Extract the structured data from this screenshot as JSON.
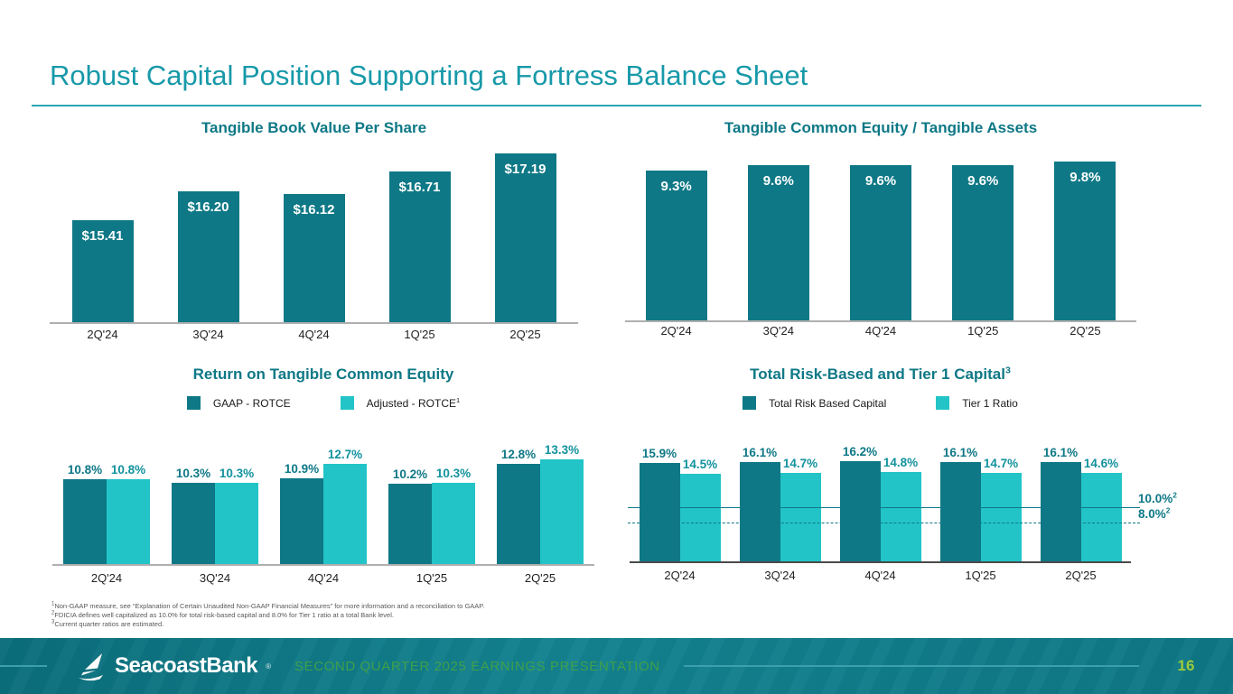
{
  "slide": {
    "title": "Robust Capital Position Supporting a Fortress Balance Sheet",
    "logo_text": "SeacoastBank",
    "logo_mark": "®",
    "footer_text": "SECOND QUARTER 2025 EARNINGS PRESENTATION",
    "page_number": "16"
  },
  "colors": {
    "title_teal": "#1799A9",
    "chart_title_teal": "#0E7886",
    "bar_dark": "#0E7886",
    "bar_light": "#22C4C7",
    "footer_bg": "#0E7684",
    "footer_title_green": "#3FA04A",
    "page_number_green": "#9BCB3C"
  },
  "footnotes": [
    {
      "sup": "1",
      "text": "Non-GAAP measure, see “Explanation of Certain Unaudited Non-GAAP Financial Measures” for more information and a reconciliation to GAAP."
    },
    {
      "sup": "2",
      "text": "FDICIA defines well capitalized as 10.0% for total risk-based capital and 8.0% for Tier 1 ratio at a total Bank level."
    },
    {
      "sup": "3",
      "text": "Current quarter ratios are estimated."
    }
  ],
  "chart_data": [
    {
      "id": "tangible-book-value-per-share",
      "type": "bar",
      "title": "Tangible Book Value Per Share",
      "categories": [
        "2Q'24",
        "3Q'24",
        "4Q'24",
        "1Q'25",
        "2Q'25"
      ],
      "values": [
        15.41,
        16.2,
        16.12,
        16.71,
        17.19
      ],
      "labels": [
        "$15.41",
        "$16.20",
        "$16.12",
        "$16.71",
        "$17.19"
      ],
      "label_position": "inside-top",
      "grid": false,
      "ylim": [
        12.7,
        17.8
      ]
    },
    {
      "id": "tangible-common-equity-to-tangible-assets",
      "type": "bar",
      "title": "Tangible Common Equity / Tangible Assets",
      "categories": [
        "2Q'24",
        "3Q'24",
        "4Q'24",
        "1Q'25",
        "2Q'25"
      ],
      "values": [
        9.3,
        9.6,
        9.6,
        9.6,
        9.8
      ],
      "labels": [
        "9.3%",
        "9.6%",
        "9.6%",
        "9.6%",
        "9.8%"
      ],
      "label_position": "inside-top",
      "grid": false,
      "ylim": [
        1.5,
        10.3
      ]
    },
    {
      "id": "return-on-tangible-common-equity",
      "type": "bar",
      "title": "Return on Tangible Common Equity",
      "categories": [
        "2Q'24",
        "3Q'24",
        "4Q'24",
        "1Q'25",
        "2Q'25"
      ],
      "series": [
        {
          "name": "GAAP - ROTCE",
          "name_sup": "",
          "values": [
            10.8,
            10.3,
            10.9,
            10.2,
            12.8
          ],
          "labels": [
            "10.8%",
            "10.3%",
            "10.9%",
            "10.2%",
            "12.8%"
          ]
        },
        {
          "name": "Adjusted - ROTCE",
          "name_sup": "1",
          "values": [
            10.8,
            10.3,
            12.7,
            10.3,
            13.3
          ],
          "labels": [
            "10.8%",
            "10.3%",
            "12.7%",
            "10.3%",
            "13.3%"
          ]
        }
      ],
      "label_position": "above",
      "legend_position": "top",
      "grid": false,
      "ylim": [
        0,
        15.5
      ]
    },
    {
      "id": "total-risk-based-and-tier-1-capital",
      "type": "bar",
      "title": "Total Risk-Based and Tier 1 Capital",
      "title_sup": "3",
      "categories": [
        "2Q'24",
        "3Q'24",
        "4Q'24",
        "1Q'25",
        "2Q'25"
      ],
      "series": [
        {
          "name": "Total Risk Based Capital",
          "name_sup": "",
          "values": [
            15.9,
            16.1,
            16.2,
            16.1,
            16.1
          ],
          "labels": [
            "15.9%",
            "16.1%",
            "16.2%",
            "16.1%",
            "16.1%"
          ]
        },
        {
          "name": "Tier 1 Ratio",
          "name_sup": "",
          "values": [
            14.5,
            14.7,
            14.8,
            14.7,
            14.6
          ],
          "labels": [
            "14.5%",
            "14.7%",
            "14.8%",
            "14.7%",
            "14.6%"
          ]
        }
      ],
      "label_position": "above",
      "legend_position": "top",
      "grid": false,
      "ylim": [
        3,
        17.5
      ],
      "reference_lines": [
        {
          "value": 10.0,
          "label": "10.0%",
          "label_sup": "2",
          "style": "solid"
        },
        {
          "value": 8.0,
          "label": "8.0%",
          "label_sup": "2",
          "style": "dashed"
        }
      ]
    }
  ]
}
